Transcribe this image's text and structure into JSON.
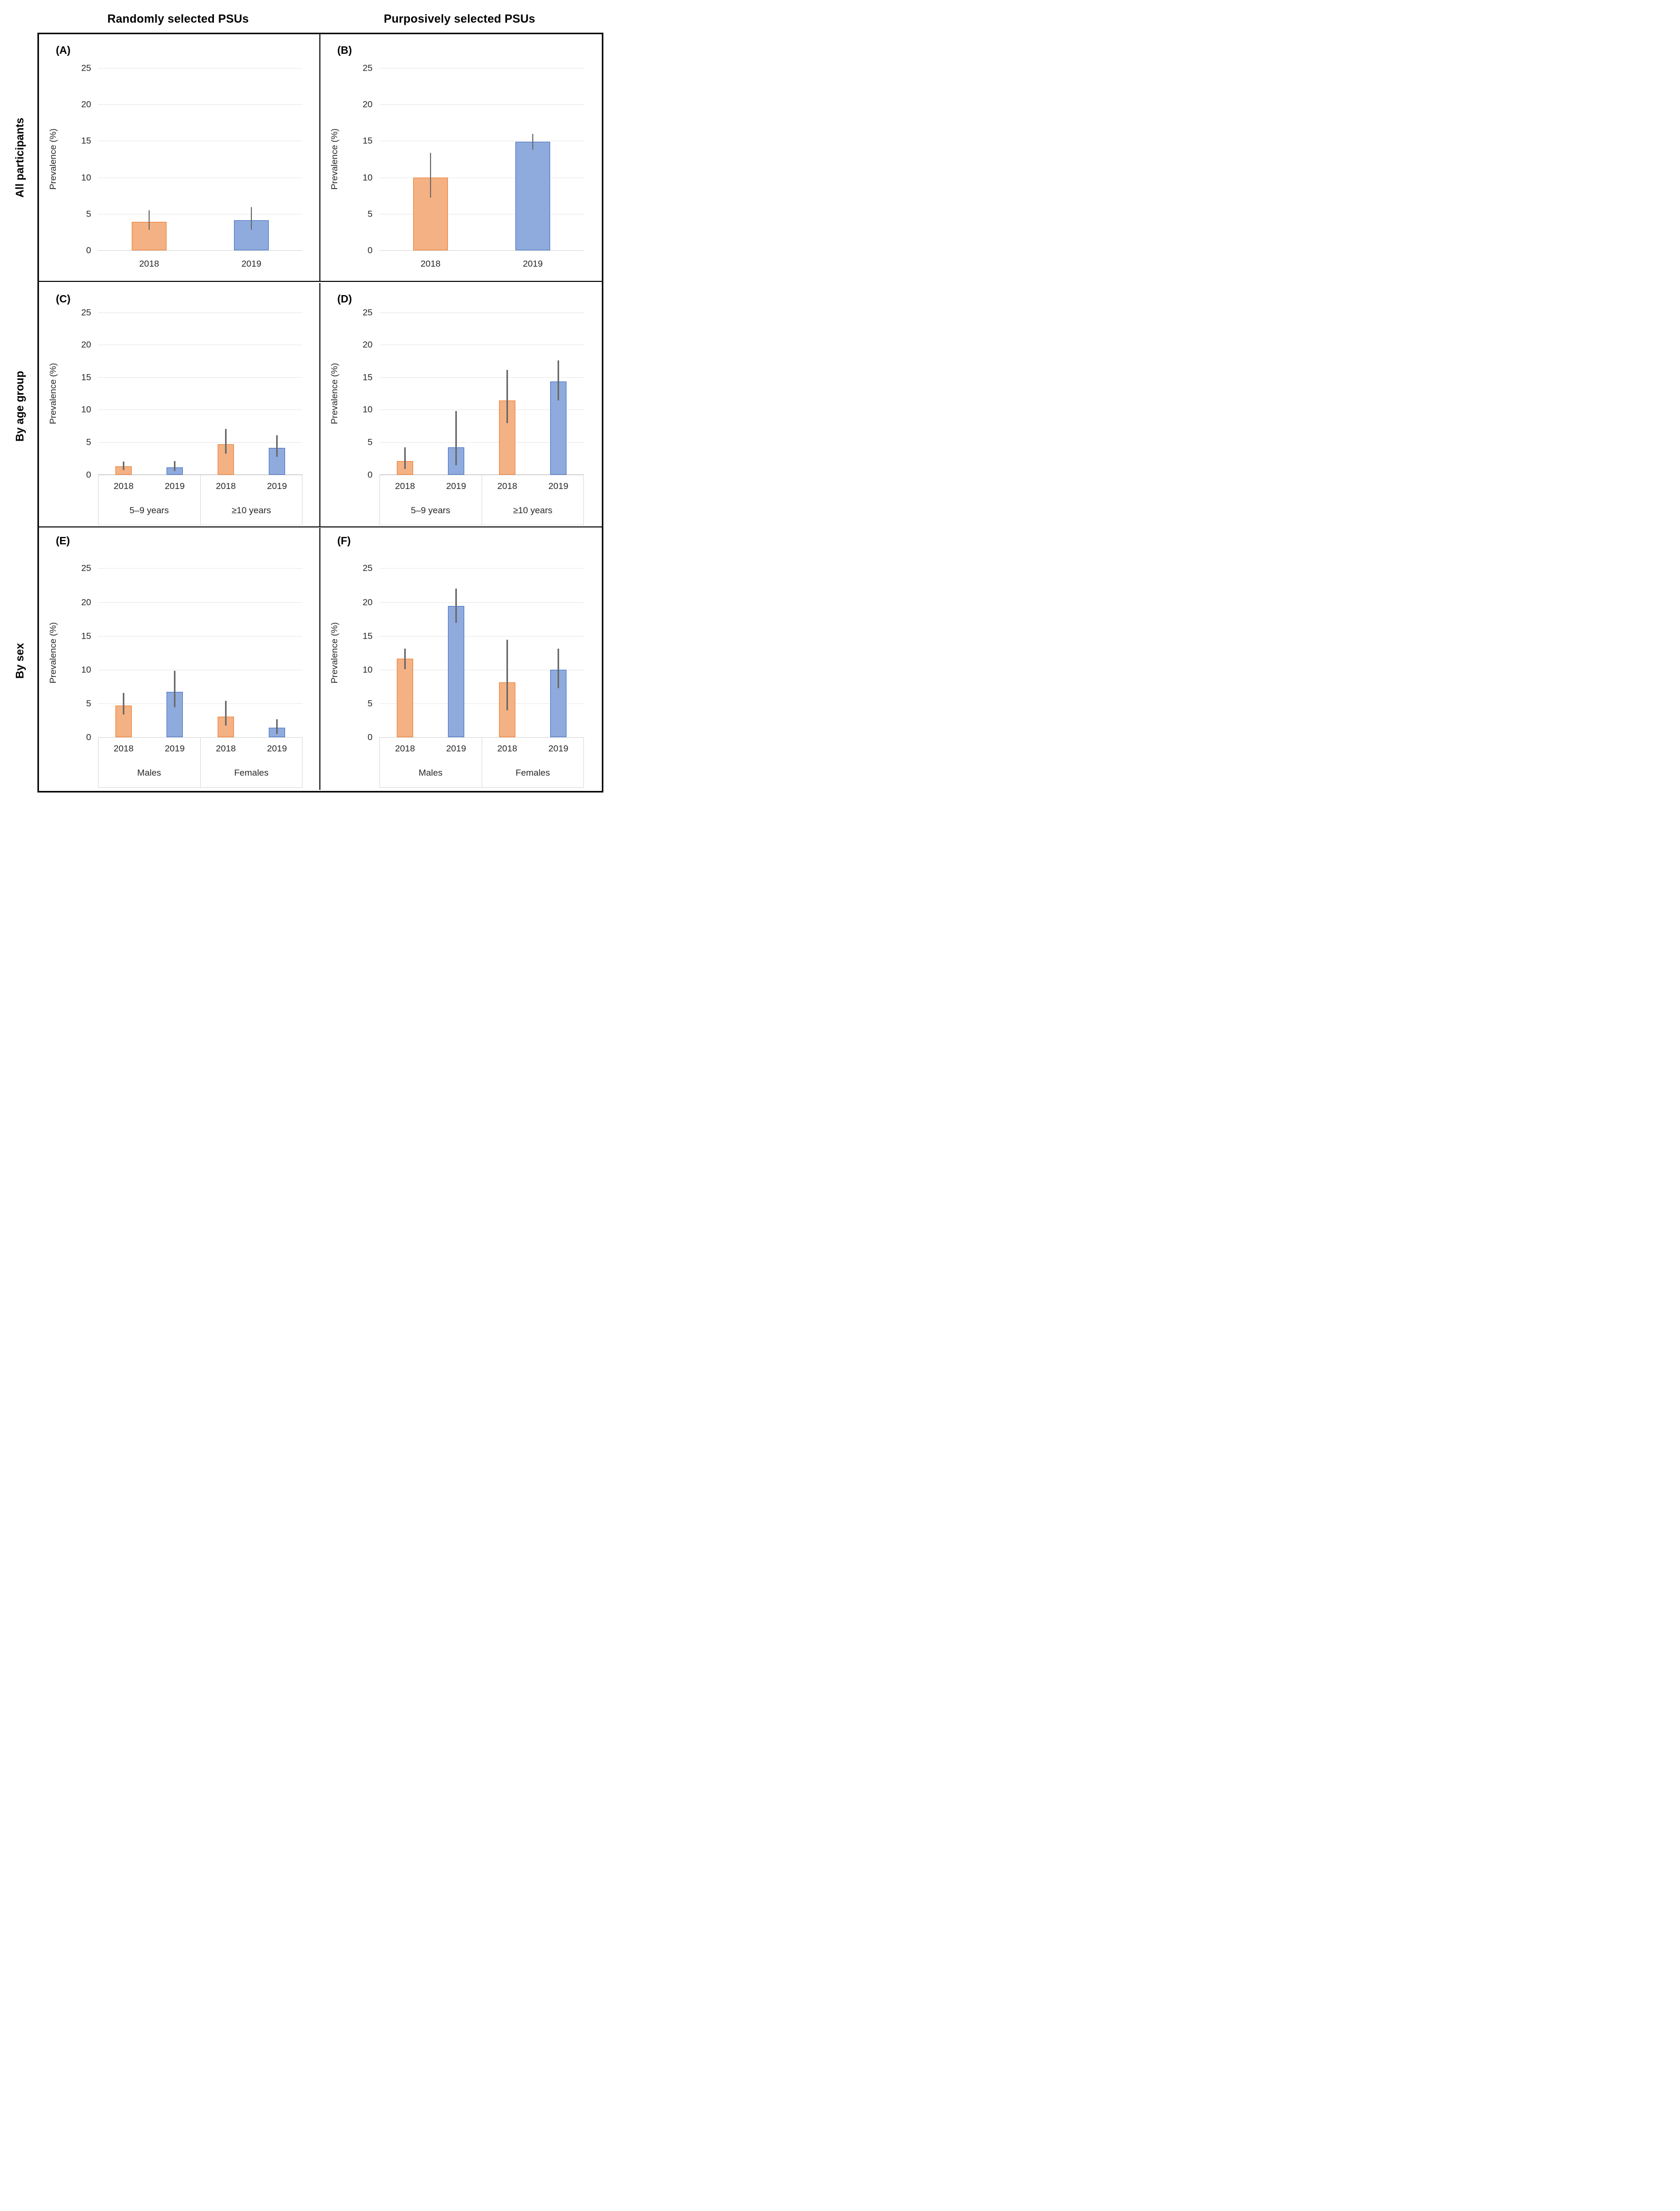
{
  "figure": {
    "column_headers": [
      "Randomly selected PSUs",
      "Purposively selected PSUs"
    ],
    "row_headers": [
      "All participants",
      "By age group",
      "By sex"
    ]
  },
  "chart_data": {
    "type": "bar",
    "y_axis_title": "Prevalence (%)",
    "ylim": [
      0,
      25
    ],
    "yticks": [
      0,
      5,
      10,
      15,
      20,
      25
    ],
    "grid": true,
    "legend": "none",
    "series_names": [
      "2018",
      "2019"
    ],
    "style": {
      "bar_fill_2018": "#F4B183",
      "bar_border_2018": "#ED7D31",
      "bar_fill_2019": "#8FAADC",
      "bar_border_2019": "#4472C4",
      "error_bar_color": "#6b6b6b",
      "gridline_color": "#e8e8e8",
      "axis_line_color": "#d6d6d6"
    },
    "panels": [
      {
        "letter": "(A)",
        "row": "All participants",
        "column": "Randomly selected PSUs",
        "groups": [
          {
            "label": null,
            "bars": [
              {
                "year": "2018",
                "value": 3.9,
                "ci_low": 2.8,
                "ci_high": 5.5
              },
              {
                "year": "2019",
                "value": 4.1,
                "ci_low": 2.8,
                "ci_high": 5.9
              }
            ]
          }
        ]
      },
      {
        "letter": "(B)",
        "row": "All participants",
        "column": "Purposively selected PSUs",
        "groups": [
          {
            "label": null,
            "bars": [
              {
                "year": "2018",
                "value": 10.0,
                "ci_low": 7.2,
                "ci_high": 13.4
              },
              {
                "year": "2019",
                "value": 14.9,
                "ci_low": 13.8,
                "ci_high": 16.0
              }
            ]
          }
        ]
      },
      {
        "letter": "(C)",
        "row": "By age group",
        "column": "Randomly selected PSUs",
        "groups": [
          {
            "label": "5–9 years",
            "bars": [
              {
                "year": "2018",
                "value": 1.3,
                "ci_low": 0.7,
                "ci_high": 2.0
              },
              {
                "year": "2019",
                "value": 1.1,
                "ci_low": 0.5,
                "ci_high": 2.1
              }
            ]
          },
          {
            "label": "≥10 years",
            "bars": [
              {
                "year": "2018",
                "value": 4.7,
                "ci_low": 3.2,
                "ci_high": 7.0
              },
              {
                "year": "2019",
                "value": 4.1,
                "ci_low": 2.7,
                "ci_high": 6.1
              }
            ]
          }
        ]
      },
      {
        "letter": "(D)",
        "row": "By age group",
        "column": "Purposively selected PSUs",
        "groups": [
          {
            "label": "5–9 years",
            "bars": [
              {
                "year": "2018",
                "value": 2.1,
                "ci_low": 0.9,
                "ci_high": 4.2
              },
              {
                "year": "2019",
                "value": 4.2,
                "ci_low": 1.4,
                "ci_high": 9.8
              }
            ]
          },
          {
            "label": "≥10 years",
            "bars": [
              {
                "year": "2018",
                "value": 11.4,
                "ci_low": 7.9,
                "ci_high": 16.1
              },
              {
                "year": "2019",
                "value": 14.3,
                "ci_low": 11.4,
                "ci_high": 17.6
              }
            ]
          }
        ]
      },
      {
        "letter": "(E)",
        "row": "By sex",
        "column": "Randomly selected PSUs",
        "groups": [
          {
            "label": "Males",
            "bars": [
              {
                "year": "2018",
                "value": 4.7,
                "ci_low": 3.4,
                "ci_high": 6.6
              },
              {
                "year": "2019",
                "value": 6.7,
                "ci_low": 4.5,
                "ci_high": 9.8
              }
            ]
          },
          {
            "label": "Females",
            "bars": [
              {
                "year": "2018",
                "value": 3.1,
                "ci_low": 1.7,
                "ci_high": 5.4
              },
              {
                "year": "2019",
                "value": 1.4,
                "ci_low": 0.5,
                "ci_high": 2.7
              }
            ]
          }
        ]
      },
      {
        "letter": "(F)",
        "row": "By sex",
        "column": "Purposively selected PSUs",
        "groups": [
          {
            "label": "Males",
            "bars": [
              {
                "year": "2018",
                "value": 11.6,
                "ci_low": 10.1,
                "ci_high": 13.1
              },
              {
                "year": "2019",
                "value": 19.4,
                "ci_low": 16.9,
                "ci_high": 22.0
              }
            ]
          },
          {
            "label": "Females",
            "bars": [
              {
                "year": "2018",
                "value": 8.1,
                "ci_low": 4.0,
                "ci_high": 14.4
              },
              {
                "year": "2019",
                "value": 10.0,
                "ci_low": 7.3,
                "ci_high": 13.1
              }
            ]
          }
        ]
      }
    ]
  }
}
